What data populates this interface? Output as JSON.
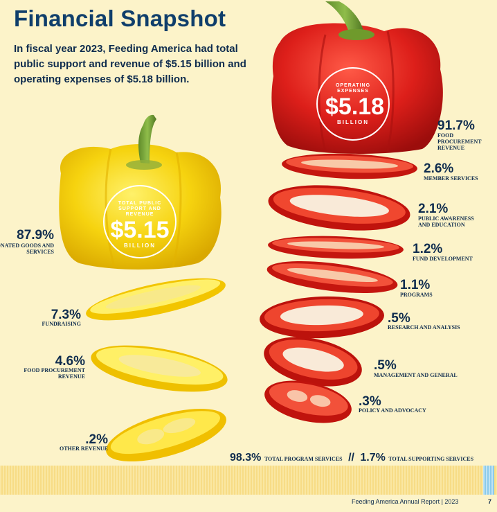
{
  "title": "Financial Snapshot",
  "intro": "In fiscal year 2023, Feeding America had total public support and revenue of $5.15 billion and operating expenses of $5.18 billion.",
  "revenue": {
    "bubble": {
      "caption": "TOTAL PUBLIC SUPPORT AND REVENUE",
      "amount": "$5.15",
      "unit": "BILLION"
    },
    "items": [
      {
        "pct": "87.9%",
        "label": "DONATED GOODS AND SERVICES"
      },
      {
        "pct": "7.3%",
        "label": "FUNDRAISING"
      },
      {
        "pct": "4.6%",
        "label": "FOOD PROCUREMENT REVENUE"
      },
      {
        "pct": ".2%",
        "label": "OTHER REVENUE"
      }
    ]
  },
  "expenses": {
    "bubble": {
      "caption": "OPERATING EXPENSES",
      "amount": "$5.18",
      "unit": "BILLION"
    },
    "items": [
      {
        "pct": "91.7%",
        "label": "FOOD PROCUREMENT REVENUE"
      },
      {
        "pct": "2.6%",
        "label": "MEMBER SERVICES"
      },
      {
        "pct": "2.1%",
        "label": "PUBLIC AWARENESS AND EDUCATION"
      },
      {
        "pct": "1.2%",
        "label": "FUND DEVELOPMENT"
      },
      {
        "pct": "1.1%",
        "label": "PROGRAMS"
      },
      {
        "pct": ".5%",
        "label": "RESEARCH AND ANALYSIS"
      },
      {
        "pct": ".5%",
        "label": "MANAGEMENT AND GENERAL"
      },
      {
        "pct": ".3%",
        "label": "POLICY AND ADVOCACY"
      }
    ]
  },
  "summary": {
    "program_pct": "98.3%",
    "program_label": "TOTAL PROGRAM SERVICES",
    "separator": "//",
    "supporting_pct": "1.7%",
    "supporting_label": "TOTAL SUPPORTING SERVICES"
  },
  "footer": {
    "report": "Feeding America Annual Report | 2023",
    "page": "7"
  },
  "colors": {
    "yellow_pepper": "#f6d30f",
    "red_pepper": "#e0231d",
    "navy_text": "#0f2c4e",
    "background": "#fcf3c9"
  }
}
